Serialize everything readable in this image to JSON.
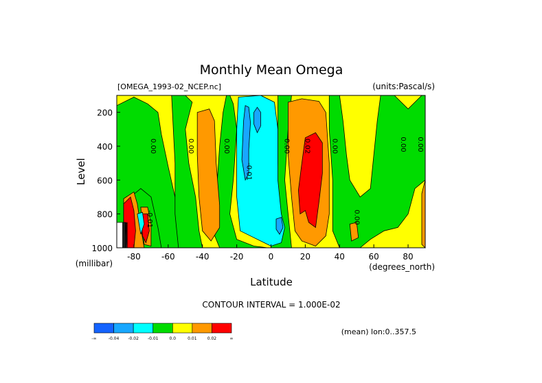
{
  "chart_data": {
    "type": "contour",
    "title": "Monthly Mean Omega",
    "source_label": "[OMEGA_1993-02_NCEP.nc]",
    "units_label": "(units:Pascal/s)",
    "xlabel": "Latitude",
    "x_units": "(degrees_north)",
    "ylabel": "Level",
    "y_units": "(millibar)",
    "xlim": [
      -90,
      90
    ],
    "ylim": [
      1000,
      100
    ],
    "x_ticks": [
      -80,
      -60,
      -40,
      -20,
      0,
      20,
      40,
      60,
      80
    ],
    "y_ticks": [
      200,
      400,
      600,
      800,
      1000
    ],
    "contour_interval": "CONTOUR INTERVAL = 1.000E-02",
    "mean_note": "(mean) lon:0..357.5",
    "contour_labels": [
      {
        "text": "0.00",
        "lat": -70,
        "lev": 400
      },
      {
        "text": "0.00",
        "lat": -48,
        "lev": 400
      },
      {
        "text": "0.00",
        "lat": -27,
        "lev": 400
      },
      {
        "text": "-0.01",
        "lat": -14,
        "lev": 550
      },
      {
        "text": "0.00",
        "lat": 8,
        "lev": 400
      },
      {
        "text": "0.02",
        "lat": 20,
        "lev": 400
      },
      {
        "text": "0.00",
        "lat": 36,
        "lev": 400
      },
      {
        "text": "0.00",
        "lat": 49,
        "lev": 820
      },
      {
        "text": "0.00",
        "lat": 76,
        "lev": 390
      },
      {
        "text": "0.00",
        "lat": 86,
        "lev": 390
      },
      {
        "text": "-0.01",
        "lat": -72,
        "lev": 830
      }
    ],
    "colorbar": {
      "colors": [
        "#1463ff",
        "#18a7ff",
        "#00ffff",
        "#00dc00",
        "#ffff00",
        "#ff9900",
        "#ff0000"
      ],
      "tick_labels": [
        "-∞",
        "-0.04",
        "-0.02",
        "-0.01",
        "0.0",
        "0.01",
        "0.02",
        "∞"
      ]
    }
  }
}
